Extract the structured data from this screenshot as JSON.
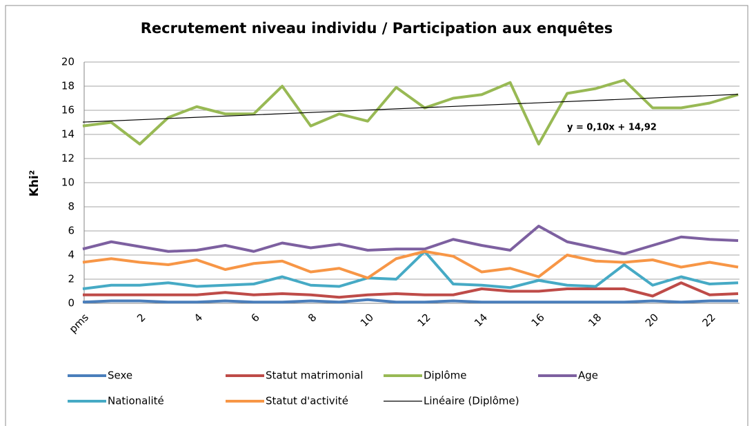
{
  "chart_data": {
    "type": "line",
    "title": "Recrutement niveau individu / Participation aux enquêtes",
    "y_label": "Khi²",
    "categories": [
      "pms",
      null,
      "2",
      null,
      "4",
      null,
      "6",
      null,
      "8",
      null,
      "10",
      null,
      "12",
      null,
      "14",
      null,
      "16",
      null,
      "18",
      null,
      "20",
      null,
      "22",
      null
    ],
    "ylim": [
      0,
      20
    ],
    "yticks": [
      0,
      2,
      4,
      6,
      8,
      10,
      12,
      14,
      16,
      18,
      20
    ],
    "grid": true,
    "series": [
      {
        "name": "Sexe",
        "color": "#4a7ebb",
        "values": [
          0.1,
          0.2,
          0.2,
          0.1,
          0.1,
          0.2,
          0.1,
          0.1,
          0.2,
          0.1,
          0.3,
          0.1,
          0.1,
          0.2,
          0.1,
          0.1,
          0.1,
          0.1,
          0.1,
          0.1,
          0.2,
          0.1,
          0.2,
          0.2
        ]
      },
      {
        "name": "Statut matrimonial",
        "color": "#be4b48",
        "values": [
          0.7,
          0.7,
          0.7,
          0.7,
          0.7,
          0.9,
          0.7,
          0.8,
          0.7,
          0.5,
          0.7,
          0.8,
          0.7,
          0.7,
          1.2,
          1.0,
          1.0,
          1.2,
          1.2,
          1.2,
          0.6,
          1.7,
          0.7,
          0.8
        ]
      },
      {
        "name": "Diplôme",
        "color": "#98b954",
        "values": [
          14.7,
          15.0,
          13.2,
          15.4,
          16.3,
          15.7,
          15.7,
          18.0,
          14.7,
          15.7,
          15.1,
          17.9,
          16.2,
          17.0,
          17.3,
          18.3,
          13.2,
          17.4,
          17.8,
          18.5,
          16.2,
          16.2,
          16.6,
          17.3
        ]
      },
      {
        "name": "Age",
        "color": "#7d60a0",
        "values": [
          4.5,
          5.1,
          4.7,
          4.3,
          4.4,
          4.8,
          4.3,
          5.0,
          4.6,
          4.9,
          4.4,
          4.5,
          4.5,
          5.3,
          4.8,
          4.4,
          6.4,
          5.1,
          4.6,
          4.1,
          4.8,
          5.5,
          5.3,
          5.2
        ]
      },
      {
        "name": "Nationalité",
        "color": "#46aac5",
        "values": [
          1.2,
          1.5,
          1.5,
          1.7,
          1.4,
          1.5,
          1.6,
          2.2,
          1.5,
          1.4,
          2.1,
          2.0,
          4.3,
          1.6,
          1.5,
          1.3,
          1.9,
          1.5,
          1.4,
          3.2,
          1.5,
          2.2,
          1.6,
          1.7
        ]
      },
      {
        "name": "Statut d'activité",
        "color": "#f79646",
        "values": [
          3.4,
          3.7,
          3.4,
          3.2,
          3.6,
          2.8,
          3.3,
          3.5,
          2.6,
          2.9,
          2.1,
          3.7,
          4.3,
          3.9,
          2.6,
          2.9,
          2.2,
          4.0,
          3.5,
          3.4,
          3.6,
          3.0,
          3.4,
          3.0
        ]
      }
    ],
    "trendline": {
      "name": "Linéaire (Diplôme)",
      "color": "#000000",
      "slope": 0.1,
      "intercept": 14.92,
      "label": "y = 0,10x + 14,92"
    }
  }
}
